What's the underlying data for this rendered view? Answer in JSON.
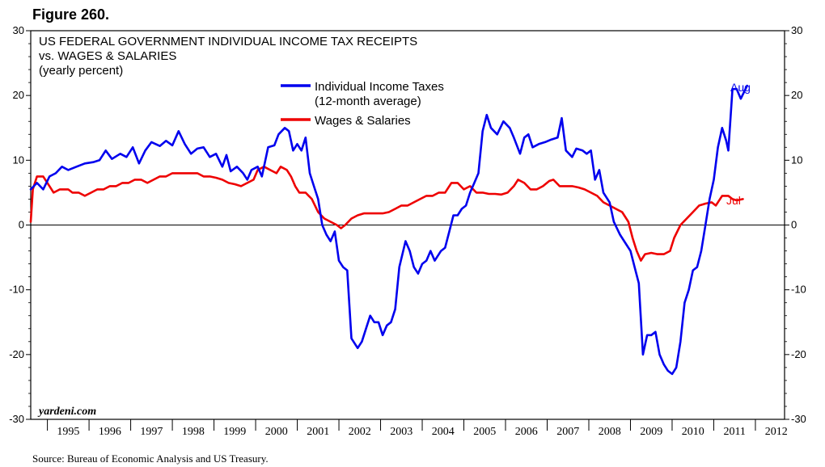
{
  "figure_label": "Figure 260.",
  "source": "Source: Bureau of Economic Analysis and US Treasury.",
  "credit": "yardeni.com",
  "colors": {
    "taxes": "#0000ee",
    "wages": "#ee0000",
    "axis": "#000000"
  },
  "chart_data": {
    "type": "line",
    "title_lines": [
      "US FEDERAL GOVERNMENT INDIVIDUAL INCOME TAX RECEIPTS",
      "vs. WAGES & SALARIES",
      "(yearly percent)"
    ],
    "ylim": [
      -30,
      30
    ],
    "y_ticks": [
      -30,
      -20,
      -10,
      0,
      10,
      20,
      30
    ],
    "y_tick_labels": [
      "-30",
      "-20",
      "-10",
      "0",
      "10",
      "20",
      "30"
    ],
    "xlim": [
      1994.6,
      2012.7
    ],
    "year_labels": [
      "1995",
      "1996",
      "1997",
      "1998",
      "1999",
      "2000",
      "2001",
      "2002",
      "2003",
      "2004",
      "2005",
      "2006",
      "2007",
      "2008",
      "2009",
      "2010",
      "2011",
      "2012"
    ],
    "zero_line": true,
    "grid": false,
    "legend_position": "top-center",
    "series": [
      {
        "name": "Individual Income Taxes",
        "name_line2": "(12-month average)",
        "end_label": "Aug",
        "points": [
          [
            1994.6,
            5.5
          ],
          [
            1994.75,
            6.5
          ],
          [
            1994.9,
            5.5
          ],
          [
            1995.05,
            7.5
          ],
          [
            1995.2,
            8
          ],
          [
            1995.35,
            9
          ],
          [
            1995.5,
            8.5
          ],
          [
            1995.7,
            9
          ],
          [
            1995.9,
            9.5
          ],
          [
            1996.1,
            9.7
          ],
          [
            1996.25,
            10
          ],
          [
            1996.4,
            11.5
          ],
          [
            1996.55,
            10.2
          ],
          [
            1996.75,
            11
          ],
          [
            1996.9,
            10.5
          ],
          [
            1997.05,
            12
          ],
          [
            1997.2,
            9.5
          ],
          [
            1997.35,
            11.5
          ],
          [
            1997.5,
            12.8
          ],
          [
            1997.7,
            12.2
          ],
          [
            1997.85,
            13
          ],
          [
            1998.0,
            12.3
          ],
          [
            1998.15,
            14.5
          ],
          [
            1998.3,
            12.5
          ],
          [
            1998.45,
            11
          ],
          [
            1998.6,
            11.8
          ],
          [
            1998.75,
            12
          ],
          [
            1998.9,
            10.5
          ],
          [
            1999.05,
            11
          ],
          [
            1999.2,
            9
          ],
          [
            1999.3,
            10.8
          ],
          [
            1999.4,
            8.3
          ],
          [
            1999.55,
            9
          ],
          [
            1999.7,
            8
          ],
          [
            1999.8,
            7
          ],
          [
            1999.9,
            8.5
          ],
          [
            2000.05,
            9
          ],
          [
            2000.15,
            7.5
          ],
          [
            2000.3,
            12
          ],
          [
            2000.45,
            12.3
          ],
          [
            2000.55,
            14
          ],
          [
            2000.7,
            15
          ],
          [
            2000.8,
            14.5
          ],
          [
            2000.9,
            11.5
          ],
          [
            2001.0,
            12.5
          ],
          [
            2001.1,
            11.5
          ],
          [
            2001.2,
            13.5
          ],
          [
            2001.3,
            8
          ],
          [
            2001.4,
            6
          ],
          [
            2001.5,
            4
          ],
          [
            2001.6,
            0
          ],
          [
            2001.7,
            -1.5
          ],
          [
            2001.8,
            -2.5
          ],
          [
            2001.9,
            -1
          ],
          [
            2002.0,
            -5.5
          ],
          [
            2002.1,
            -6.5
          ],
          [
            2002.2,
            -7
          ],
          [
            2002.3,
            -17.5
          ],
          [
            2002.45,
            -19
          ],
          [
            2002.55,
            -18
          ],
          [
            2002.65,
            -16
          ],
          [
            2002.75,
            -14
          ],
          [
            2002.85,
            -15
          ],
          [
            2002.95,
            -15
          ],
          [
            2003.05,
            -17
          ],
          [
            2003.15,
            -15.5
          ],
          [
            2003.25,
            -15
          ],
          [
            2003.35,
            -13
          ],
          [
            2003.45,
            -6.5
          ],
          [
            2003.6,
            -2.5
          ],
          [
            2003.7,
            -4
          ],
          [
            2003.8,
            -6.5
          ],
          [
            2003.9,
            -7.5
          ],
          [
            2004.0,
            -6
          ],
          [
            2004.1,
            -5.5
          ],
          [
            2004.2,
            -4
          ],
          [
            2004.3,
            -5.5
          ],
          [
            2004.45,
            -4
          ],
          [
            2004.55,
            -3.5
          ],
          [
            2004.65,
            -1
          ],
          [
            2004.75,
            1.5
          ],
          [
            2004.85,
            1.5
          ],
          [
            2004.95,
            2.5
          ],
          [
            2005.05,
            3
          ],
          [
            2005.15,
            5
          ],
          [
            2005.25,
            6.5
          ],
          [
            2005.35,
            8
          ],
          [
            2005.45,
            14.5
          ],
          [
            2005.55,
            17
          ],
          [
            2005.65,
            15
          ],
          [
            2005.8,
            14
          ],
          [
            2005.95,
            16
          ],
          [
            2006.1,
            15
          ],
          [
            2006.2,
            13.5
          ],
          [
            2006.35,
            11
          ],
          [
            2006.45,
            13.5
          ],
          [
            2006.55,
            14
          ],
          [
            2006.65,
            12
          ],
          [
            2006.8,
            12.5
          ],
          [
            2006.95,
            12.8
          ],
          [
            2007.1,
            13.2
          ],
          [
            2007.25,
            13.5
          ],
          [
            2007.35,
            16.5
          ],
          [
            2007.45,
            11.5
          ],
          [
            2007.6,
            10.5
          ],
          [
            2007.7,
            11.8
          ],
          [
            2007.85,
            11.5
          ],
          [
            2007.95,
            11
          ],
          [
            2008.05,
            11.5
          ],
          [
            2008.15,
            7
          ],
          [
            2008.25,
            8.5
          ],
          [
            2008.35,
            5
          ],
          [
            2008.5,
            3.5
          ],
          [
            2008.6,
            0.5
          ],
          [
            2008.75,
            -1.5
          ],
          [
            2008.9,
            -3
          ],
          [
            2009.0,
            -4
          ],
          [
            2009.1,
            -6.5
          ],
          [
            2009.2,
            -9
          ],
          [
            2009.3,
            -20
          ],
          [
            2009.4,
            -17
          ],
          [
            2009.5,
            -17
          ],
          [
            2009.6,
            -16.5
          ],
          [
            2009.7,
            -20
          ],
          [
            2009.8,
            -21.5
          ],
          [
            2009.9,
            -22.5
          ],
          [
            2010.0,
            -23
          ],
          [
            2010.1,
            -22
          ],
          [
            2010.2,
            -18
          ],
          [
            2010.3,
            -12
          ],
          [
            2010.4,
            -10
          ],
          [
            2010.5,
            -7
          ],
          [
            2010.6,
            -6.5
          ],
          [
            2010.7,
            -4
          ],
          [
            2010.8,
            0
          ],
          [
            2010.9,
            4
          ],
          [
            2011.0,
            7
          ],
          [
            2011.1,
            12
          ],
          [
            2011.2,
            15
          ],
          [
            2011.3,
            13
          ],
          [
            2011.35,
            11.5
          ],
          [
            2011.45,
            21
          ],
          [
            2011.55,
            21
          ],
          [
            2011.65,
            19.5
          ],
          [
            2011.8,
            21.5
          ]
        ]
      },
      {
        "name": "Wages & Salaries",
        "end_label": "Jul",
        "points": [
          [
            1994.6,
            0.5
          ],
          [
            1994.65,
            5.5
          ],
          [
            1994.75,
            7.5
          ],
          [
            1994.9,
            7.5
          ],
          [
            1995.05,
            6
          ],
          [
            1995.15,
            5
          ],
          [
            1995.3,
            5.5
          ],
          [
            1995.5,
            5.5
          ],
          [
            1995.6,
            5
          ],
          [
            1995.75,
            5
          ],
          [
            1995.9,
            4.5
          ],
          [
            1996.05,
            5
          ],
          [
            1996.2,
            5.5
          ],
          [
            1996.35,
            5.5
          ],
          [
            1996.5,
            6
          ],
          [
            1996.65,
            6
          ],
          [
            1996.8,
            6.5
          ],
          [
            1996.95,
            6.5
          ],
          [
            1997.1,
            7
          ],
          [
            1997.25,
            7
          ],
          [
            1997.4,
            6.5
          ],
          [
            1997.55,
            7
          ],
          [
            1997.7,
            7.5
          ],
          [
            1997.85,
            7.5
          ],
          [
            1998.0,
            8
          ],
          [
            1998.15,
            8
          ],
          [
            1998.3,
            8
          ],
          [
            1998.45,
            8
          ],
          [
            1998.6,
            8
          ],
          [
            1998.75,
            7.5
          ],
          [
            1998.9,
            7.5
          ],
          [
            1999.05,
            7.3
          ],
          [
            1999.2,
            7
          ],
          [
            1999.35,
            6.5
          ],
          [
            1999.5,
            6.3
          ],
          [
            1999.65,
            6
          ],
          [
            1999.8,
            6.5
          ],
          [
            1999.95,
            7
          ],
          [
            2000.05,
            8.5
          ],
          [
            2000.2,
            9
          ],
          [
            2000.35,
            8.5
          ],
          [
            2000.5,
            8
          ],
          [
            2000.6,
            9
          ],
          [
            2000.75,
            8.5
          ],
          [
            2000.85,
            7.5
          ],
          [
            2000.95,
            6
          ],
          [
            2001.05,
            5
          ],
          [
            2001.2,
            5
          ],
          [
            2001.35,
            4
          ],
          [
            2001.5,
            2
          ],
          [
            2001.65,
            1
          ],
          [
            2001.8,
            0.5
          ],
          [
            2001.95,
            0
          ],
          [
            2002.05,
            -0.5
          ],
          [
            2002.15,
            0
          ],
          [
            2002.3,
            1
          ],
          [
            2002.45,
            1.5
          ],
          [
            2002.6,
            1.8
          ],
          [
            2002.75,
            1.8
          ],
          [
            2002.9,
            1.8
          ],
          [
            2003.05,
            1.8
          ],
          [
            2003.2,
            2
          ],
          [
            2003.35,
            2.5
          ],
          [
            2003.5,
            3
          ],
          [
            2003.65,
            3
          ],
          [
            2003.8,
            3.5
          ],
          [
            2003.95,
            4
          ],
          [
            2004.1,
            4.5
          ],
          [
            2004.25,
            4.5
          ],
          [
            2004.4,
            5
          ],
          [
            2004.55,
            5
          ],
          [
            2004.7,
            6.5
          ],
          [
            2004.85,
            6.5
          ],
          [
            2005.0,
            5.5
          ],
          [
            2005.15,
            6
          ],
          [
            2005.3,
            5
          ],
          [
            2005.45,
            5
          ],
          [
            2005.6,
            4.8
          ],
          [
            2005.75,
            4.8
          ],
          [
            2005.9,
            4.7
          ],
          [
            2006.05,
            5
          ],
          [
            2006.2,
            6
          ],
          [
            2006.3,
            7
          ],
          [
            2006.45,
            6.5
          ],
          [
            2006.6,
            5.5
          ],
          [
            2006.75,
            5.5
          ],
          [
            2006.9,
            6
          ],
          [
            2007.05,
            6.8
          ],
          [
            2007.15,
            7
          ],
          [
            2007.3,
            6
          ],
          [
            2007.45,
            6
          ],
          [
            2007.6,
            6
          ],
          [
            2007.75,
            5.8
          ],
          [
            2007.9,
            5.5
          ],
          [
            2008.05,
            5
          ],
          [
            2008.2,
            4.5
          ],
          [
            2008.35,
            3.5
          ],
          [
            2008.5,
            3
          ],
          [
            2008.65,
            2.5
          ],
          [
            2008.8,
            2
          ],
          [
            2008.95,
            0.5
          ],
          [
            2009.05,
            -2
          ],
          [
            2009.15,
            -4
          ],
          [
            2009.25,
            -5.5
          ],
          [
            2009.35,
            -4.5
          ],
          [
            2009.5,
            -4.3
          ],
          [
            2009.65,
            -4.5
          ],
          [
            2009.8,
            -4.5
          ],
          [
            2009.95,
            -4
          ],
          [
            2010.05,
            -2
          ],
          [
            2010.2,
            0
          ],
          [
            2010.35,
            1
          ],
          [
            2010.5,
            2
          ],
          [
            2010.65,
            3
          ],
          [
            2010.8,
            3.3
          ],
          [
            2010.95,
            3.5
          ],
          [
            2011.05,
            3
          ],
          [
            2011.2,
            4.5
          ],
          [
            2011.35,
            4.5
          ],
          [
            2011.45,
            4
          ],
          [
            2011.55,
            3.8
          ],
          [
            2011.7,
            4
          ]
        ]
      }
    ]
  }
}
